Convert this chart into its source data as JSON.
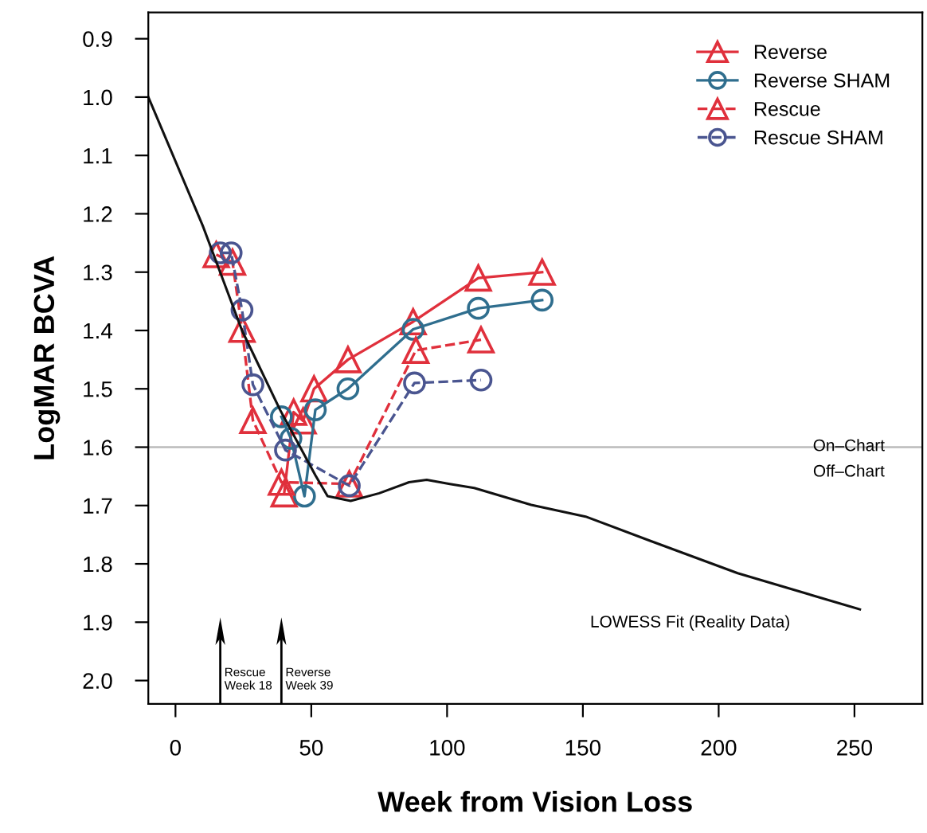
{
  "chart_data": {
    "type": "line",
    "xlabel": "Week from Vision Loss",
    "ylabel": "LogMAR BCVA",
    "xlim": [
      -10,
      275
    ],
    "xticks": [
      0,
      50,
      100,
      150,
      200,
      250
    ],
    "ylim": [
      2.04,
      0.855
    ],
    "yticks": [
      {
        "value": 0.9,
        "label": "0.9"
      },
      {
        "value": 1.0,
        "label": "1.0"
      },
      {
        "value": 1.1,
        "label": "1.1"
      },
      {
        "value": 1.2,
        "label": "1.2"
      },
      {
        "value": 1.3,
        "label": "1.3"
      },
      {
        "value": 1.4,
        "label": "1.4"
      },
      {
        "value": 1.5,
        "label": "1.5"
      },
      {
        "value": 1.6,
        "label": "1.6"
      },
      {
        "value": 1.7,
        "label": "1.7"
      },
      {
        "value": 1.8,
        "label": "1.8"
      },
      {
        "value": 1.9,
        "label": "1.9"
      },
      {
        "value": 2.0,
        "label": "2.0"
      }
    ],
    "grid": false,
    "legend": "top right",
    "series": [
      {
        "name": "Reverse",
        "color": "#e0303c",
        "marker": "triangle",
        "line_style": "solid",
        "x": [
          40,
          43.5,
          47,
          51,
          63.5,
          87.5,
          111.5,
          135
        ],
        "values": [
          1.68,
          1.54,
          1.555,
          1.5,
          1.45,
          1.385,
          1.31,
          1.3
        ]
      },
      {
        "name": "Reverse SHAM",
        "color": "#2f6e8e",
        "marker": "circle",
        "line_style": "solid",
        "x": [
          39,
          42.5,
          47.5,
          51.5,
          63.5,
          87.5,
          111.5,
          135
        ],
        "values": [
          1.548,
          1.585,
          1.684,
          1.536,
          1.5,
          1.398,
          1.362,
          1.348
        ]
      },
      {
        "name": "Rescue",
        "color": "#e0303c",
        "marker": "triangle",
        "line_style": "dashed",
        "x": [
          15,
          21,
          24.5,
          28.5,
          39,
          64,
          88.5,
          112.5
        ],
        "values": [
          1.27,
          1.283,
          1.398,
          1.554,
          1.66,
          1.663,
          1.434,
          1.416
        ]
      },
      {
        "name": "Rescue SHAM",
        "color": "#4a5590",
        "marker": "circle",
        "line_style": "dashed",
        "x": [
          16.5,
          20.5,
          24.5,
          28.5,
          40.5,
          64,
          88,
          112.5
        ],
        "values": [
          1.267,
          1.267,
          1.365,
          1.493,
          1.605,
          1.666,
          1.49,
          1.485
        ]
      },
      {
        "color": "#111111",
        "marker": "none",
        "line_style": "solid",
        "x": [
          -10,
          10,
          24.5,
          38.5,
          51.5,
          56,
          64.5,
          75,
          86,
          92.5,
          101,
          110,
          131,
          151,
          174.5,
          207,
          252
        ],
        "values": [
          1.0,
          1.22,
          1.4,
          1.536,
          1.648,
          1.684,
          1.692,
          1.679,
          1.66,
          1.656,
          1.663,
          1.67,
          1.699,
          1.719,
          1.76,
          1.816,
          1.878
        ]
      }
    ],
    "ref_lines": [
      {
        "axis": "y",
        "value": 1.6,
        "color": "#bbbbbb"
      },
      {
        "axis": "x",
        "value": 16.5,
        "label": "Rescue\nWeek 18",
        "color": "#000000"
      },
      {
        "axis": "x",
        "value": 39,
        "label": "Reverse\nWeek 39",
        "color": "#000000"
      }
    ],
    "annotations": [
      "On–Chart",
      "Off–Chart",
      "LOWESS Fit (Reality Data)"
    ]
  }
}
